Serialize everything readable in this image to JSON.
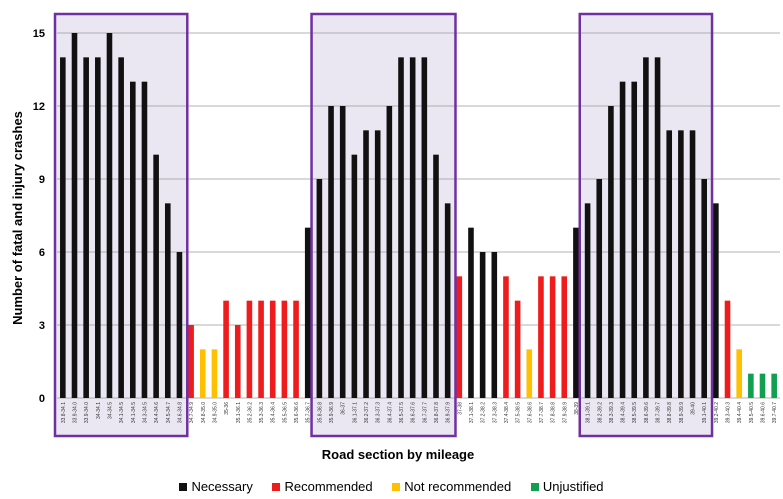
{
  "chart_data": {
    "type": "bar",
    "xlabel": "Road section by mileage",
    "ylabel": "Number of fatal and injury crashes",
    "ylim": [
      0,
      15
    ],
    "yticks": [
      0,
      3,
      6,
      9,
      12,
      15
    ],
    "grid": true,
    "legend_position": "bottom",
    "colors": {
      "Necessary": "#111111",
      "Recommended": "#ee1c1c",
      "Not recommended": "#ffc000",
      "Unjustified": "#10a050"
    },
    "categories": [
      "33.8-34.1",
      "33.9-34.0",
      "33.9-34.0",
      "34-34.1",
      "34-34.5",
      "34.1-34.5",
      "34.1-34.5",
      "34.3-34.5",
      "34.4-34.6",
      "34.5-34.7",
      "34.6-34.8",
      "34.7-34.9",
      "34.8-35.0",
      "34.9-35.0",
      "35-36",
      "35.1-36.1",
      "35.2-36.2",
      "35.3-36.3",
      "35.4-36.4",
      "35.5-36.5",
      "35.6-36.6",
      "35.7-36.7",
      "35.8-36.8",
      "35.9-36.9",
      "36-37",
      "36.1-37.1",
      "36.2-37.2",
      "36.3-37.3",
      "36.4-37.4",
      "36.5-37.5",
      "36.6-37.6",
      "36.7-37.7",
      "36.8-37.8",
      "36.9-37.9",
      "37-38",
      "37.1-38.1",
      "37.2-38.2",
      "37.3-38.3",
      "37.4-38.4",
      "37.5-38.5",
      "37.6-38.6",
      "37.7-38.7",
      "37.8-38.8",
      "37.9-38.9",
      "38-39",
      "38.1-39.1",
      "38.2-39.2",
      "38.3-39.3",
      "38.4-39.4",
      "38.5-39.5",
      "38.6-39.6",
      "38.7-39.7",
      "38.8-39.8",
      "38.9-39.9",
      "39-40",
      "39.1-40.1",
      "39.2-40.2",
      "39.3-40.3",
      "39.4-40.4",
      "39.5-40.5",
      "39.6-40.6",
      "39.7-40.7"
    ],
    "values": [
      14,
      15,
      14,
      14,
      15,
      14,
      13,
      13,
      10,
      8,
      6,
      3,
      2,
      2,
      4,
      3,
      4,
      4,
      4,
      4,
      4,
      7,
      9,
      12,
      12,
      10,
      11,
      11,
      12,
      14,
      14,
      14,
      10,
      8,
      5,
      7,
      6,
      6,
      5,
      4,
      2,
      5,
      5,
      5,
      7,
      8,
      9,
      12,
      13,
      13,
      14,
      14,
      11,
      11,
      11,
      9,
      8,
      4,
      2,
      1,
      1,
      1
    ],
    "value_classes": [
      "Necessary",
      "Necessary",
      "Necessary",
      "Necessary",
      "Necessary",
      "Necessary",
      "Necessary",
      "Necessary",
      "Necessary",
      "Necessary",
      "Necessary",
      "Recommended",
      "Not recommended",
      "Not recommended",
      "Recommended",
      "Recommended",
      "Recommended",
      "Recommended",
      "Recommended",
      "Recommended",
      "Recommended",
      "Necessary",
      "Necessary",
      "Necessary",
      "Necessary",
      "Necessary",
      "Necessary",
      "Necessary",
      "Necessary",
      "Necessary",
      "Necessary",
      "Necessary",
      "Necessary",
      "Necessary",
      "Recommended",
      "Necessary",
      "Necessary",
      "Necessary",
      "Recommended",
      "Recommended",
      "Not recommended",
      "Recommended",
      "Recommended",
      "Recommended",
      "Necessary",
      "Necessary",
      "Necessary",
      "Necessary",
      "Necessary",
      "Necessary",
      "Necessary",
      "Necessary",
      "Necessary",
      "Necessary",
      "Necessary",
      "Necessary",
      "Necessary",
      "Recommended",
      "Not recommended",
      "Unjustified",
      "Unjustified",
      "Unjustified"
    ],
    "legend": [
      "Necessary",
      "Recommended",
      "Not recommended",
      "Unjustified"
    ],
    "highlight_boxes": [
      {
        "from": "33.8-34.1",
        "to": "34.6-34.8",
        "fill": "#ebe7f2",
        "stroke": "#7030a0"
      },
      {
        "from": "35.8-36.8",
        "to": "36.9-37.9",
        "fill": "#ebe7f2",
        "stroke": "#7030a0"
      },
      {
        "from": "38.1-39.1",
        "to": "39.1-40.1",
        "fill": "#ebe7f2",
        "stroke": "#7030a0"
      }
    ]
  }
}
